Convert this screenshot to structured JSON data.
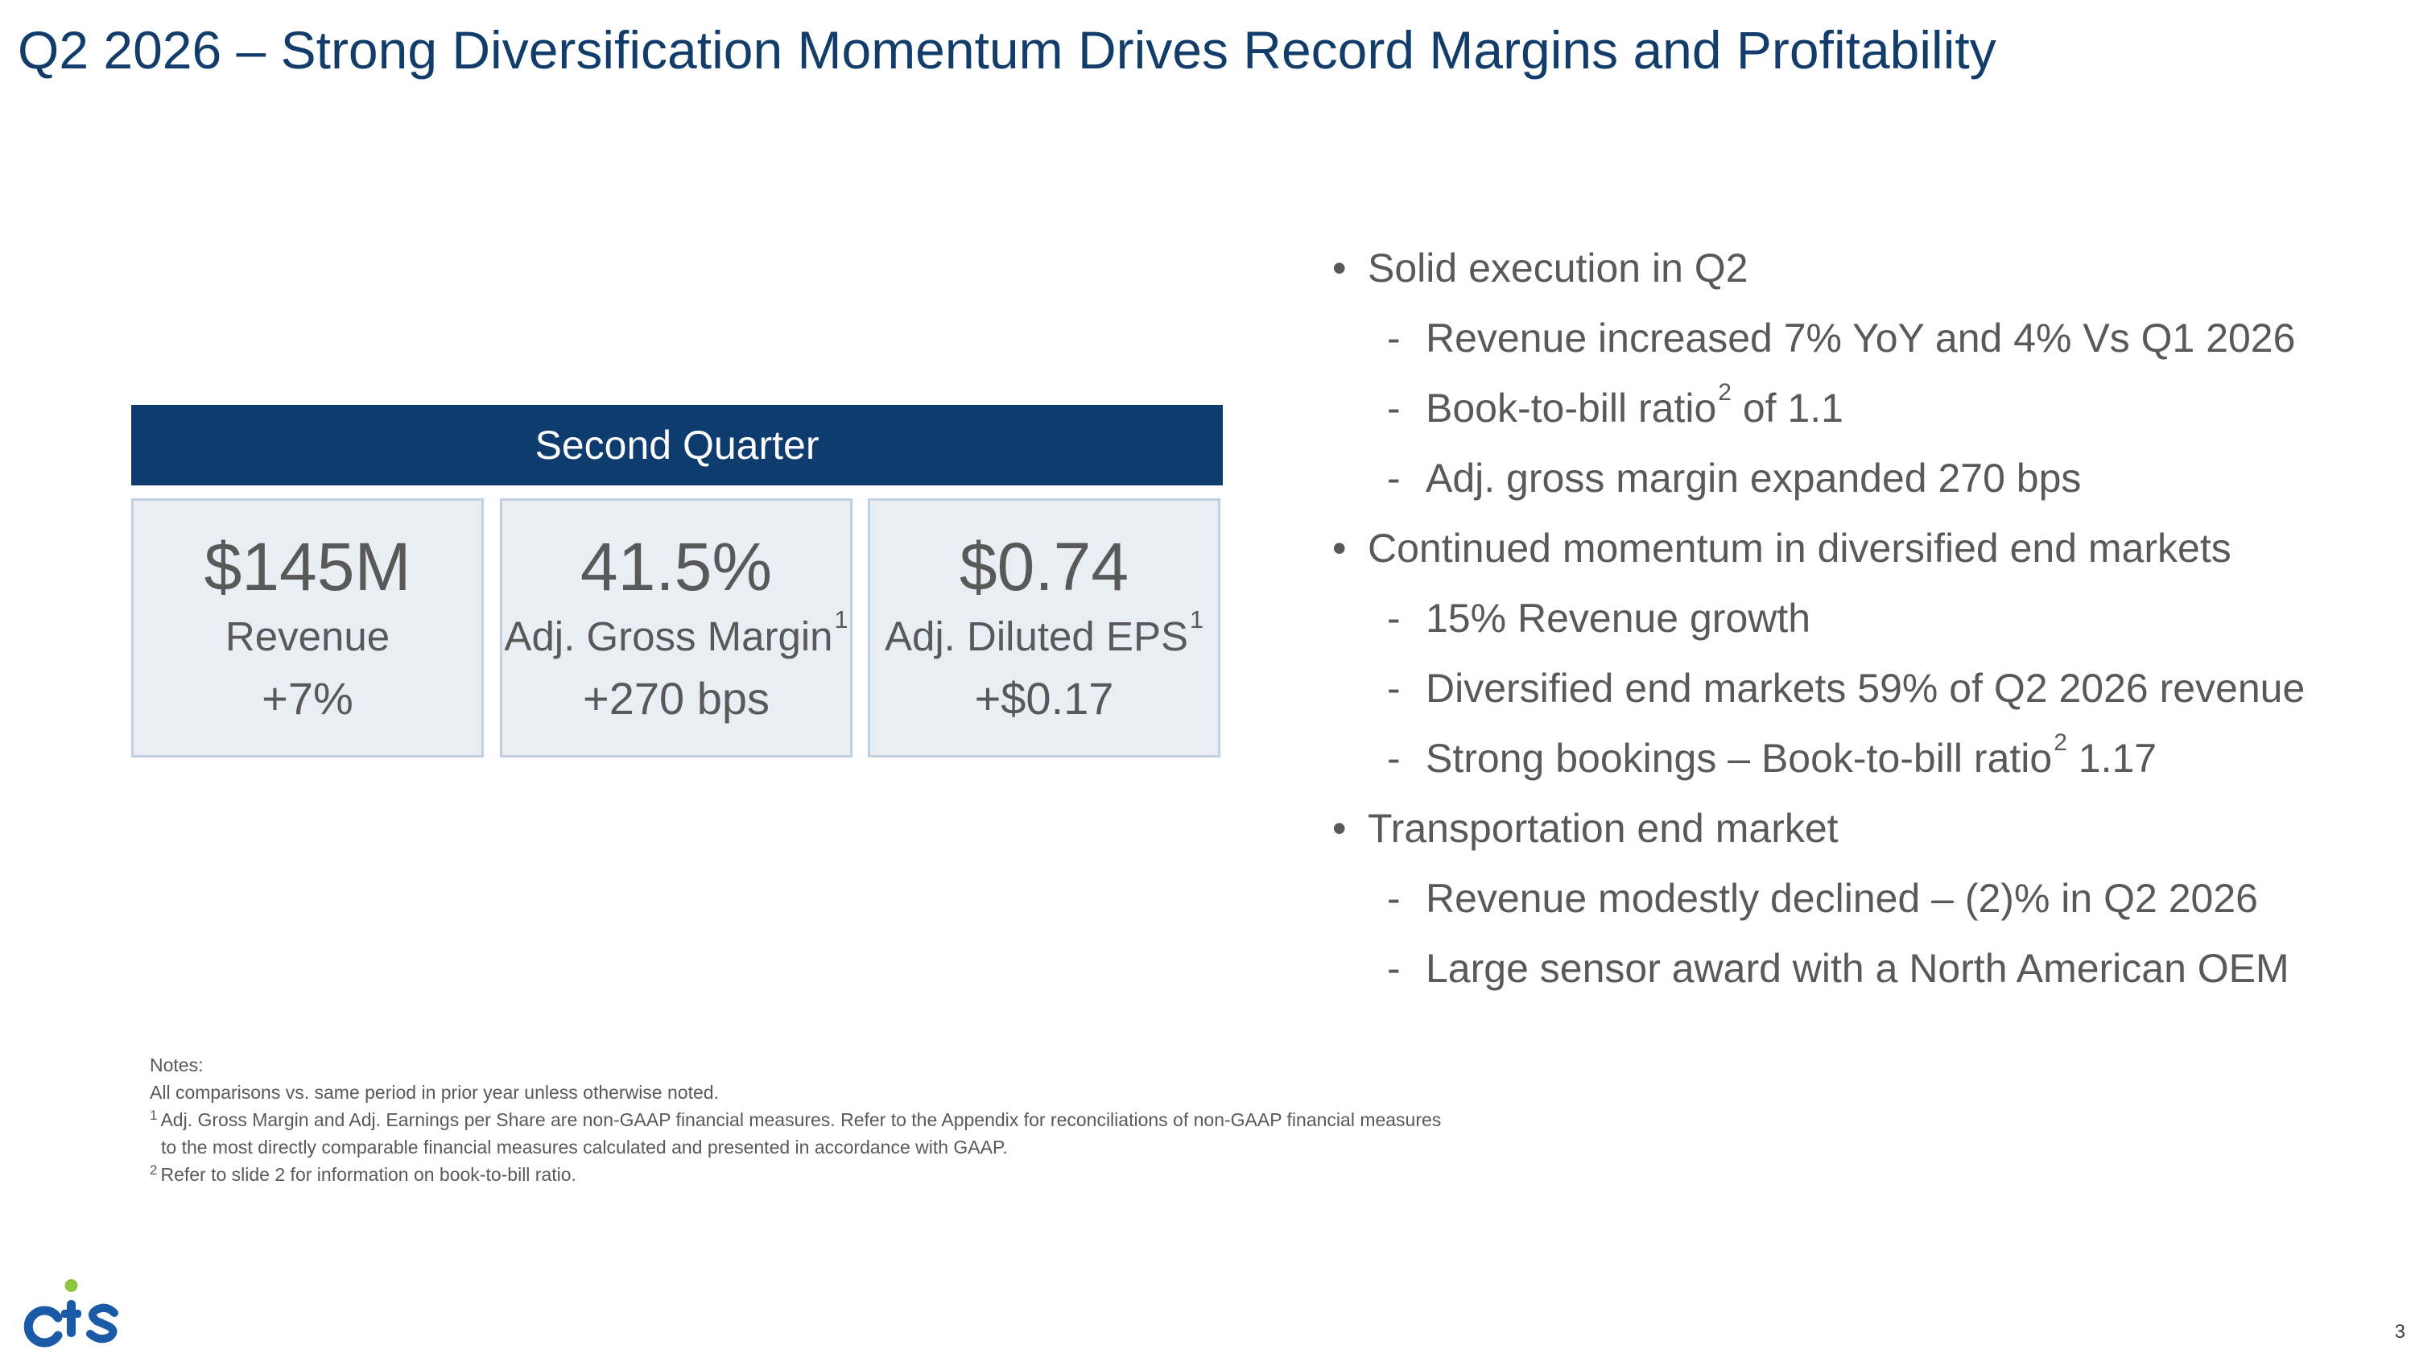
{
  "title": "Q2 2026 – Strong Diversification Momentum Drives Record Margins and Profitability",
  "quarter_header": "Second Quarter",
  "kpis": [
    {
      "value": "$145M",
      "label": "Revenue",
      "sup": "",
      "change": "+7%"
    },
    {
      "value": "41.5%",
      "label": "Adj. Gross Margin",
      "sup": "1",
      "change": "+270 bps"
    },
    {
      "value": "$0.74",
      "label": "Adj. Diluted EPS",
      "sup": "1",
      "change": "+$0.17"
    }
  ],
  "bullets": {
    "b1": "Solid execution in Q2",
    "b1_1": "Revenue increased 7% YoY and 4% Vs Q1 2026",
    "b1_2_a": "Book-to-bill ratio",
    "b1_2_sup": "2",
    "b1_2_b": " of 1.1",
    "b1_3": "Adj. gross margin expanded 270 bps",
    "b2": "Continued momentum in diversified end markets",
    "b2_1": "15% Revenue growth",
    "b2_2": "Diversified end markets 59% of Q2 2026 revenue",
    "b2_3_a": "Strong bookings – Book-to-bill ratio",
    "b2_3_sup": "2",
    "b2_3_b": " 1.17",
    "b3": "Transportation end market",
    "b3_1": "Revenue modestly declined – (2)% in Q2 2026",
    "b3_2": "Large sensor award with a North American OEM"
  },
  "notes": {
    "heading": "Notes:",
    "line1": "All comparisons vs. same period in prior year unless otherwise noted.",
    "note1_sup": "1",
    "note1": "Adj. Gross Margin and Adj. Earnings per Share are non-GAAP financial measures. Refer to the Appendix for reconciliations of non-GAAP financial measures",
    "note1_cont": "to the most directly comparable financial measures calculated and presented in accordance with GAAP.",
    "note2_sup": "2",
    "note2": "Refer to slide 2 for information on book-to-bill ratio."
  },
  "logo": {
    "name": "cts-logo",
    "text": "CTS",
    "blue": "#1b5aa6",
    "green": "#8dc63f"
  },
  "page_number": "3"
}
